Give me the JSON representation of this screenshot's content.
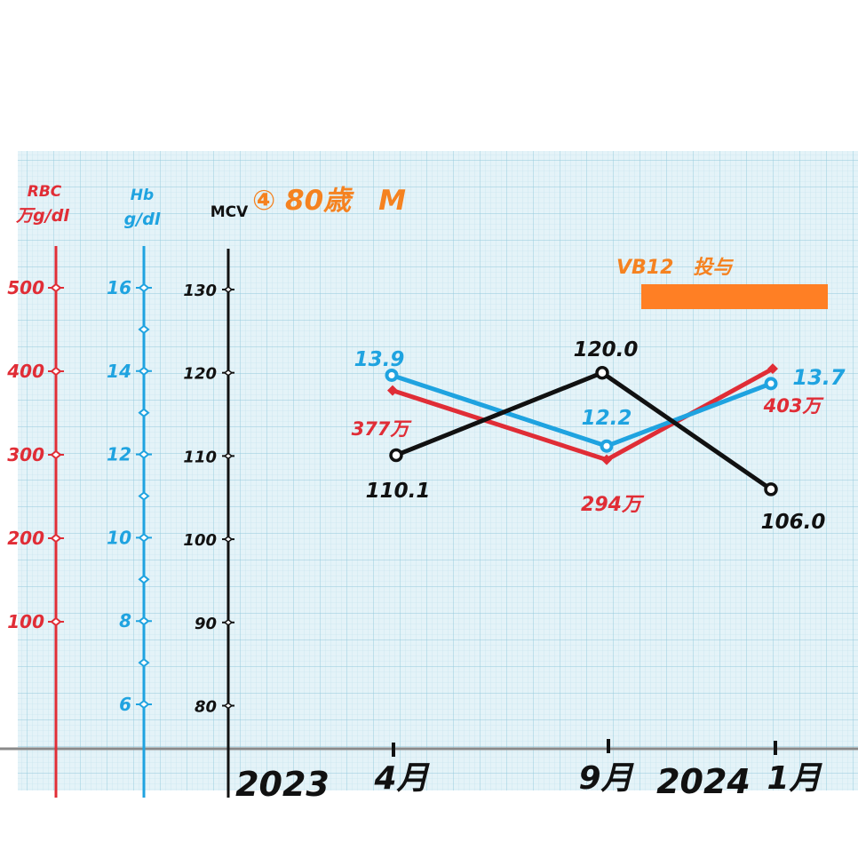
{
  "colors": {
    "rbc": "#e02d36",
    "hb": "#1fa3e0",
    "mcv": "#111111",
    "title": "#f58220",
    "bar": "#ff7f24",
    "grid_bg": "#e4f3f8",
    "grid_line": "#a9d6e6",
    "baseline": "#8a8a8a"
  },
  "chart_data": {
    "type": "line",
    "title": "④ 80歳　M",
    "x_categories": [
      "4月",
      "9月",
      "1月"
    ],
    "x_year_labels": [
      "2023",
      "2024"
    ],
    "axes": {
      "rbc": {
        "label_line1": "RBC",
        "label_line2": "万g/dl",
        "ticks": [
          "100",
          "200",
          "300",
          "400",
          "500"
        ],
        "range": [
          60,
          560
        ]
      },
      "hb": {
        "label_line1": "Hb",
        "label_line2": "g/dl",
        "ticks": [
          "6",
          "8",
          "10",
          "12",
          "14",
          "16"
        ],
        "range": [
          4.4,
          17.5
        ]
      },
      "mcv": {
        "label": "MCV",
        "ticks": [
          "80",
          "90",
          "100",
          "110",
          "120",
          "130"
        ],
        "range": [
          75,
          135
        ]
      }
    },
    "series": [
      {
        "name": "RBC",
        "axis": "rbc",
        "values": [
          377,
          294,
          403
        ],
        "labels": [
          "377万",
          "294万",
          "403万"
        ]
      },
      {
        "name": "Hb",
        "axis": "hb",
        "values": [
          13.9,
          12.2,
          13.7
        ],
        "labels": [
          "13.9",
          "12.2",
          "13.7"
        ]
      },
      {
        "name": "MCV",
        "axis": "mcv",
        "values": [
          110.1,
          120.0,
          106.0
        ],
        "labels": [
          "110.1",
          "120.0",
          "106.0"
        ]
      }
    ],
    "annotation": {
      "text": "VB12　投与",
      "from": "9月",
      "to": "1月"
    }
  }
}
